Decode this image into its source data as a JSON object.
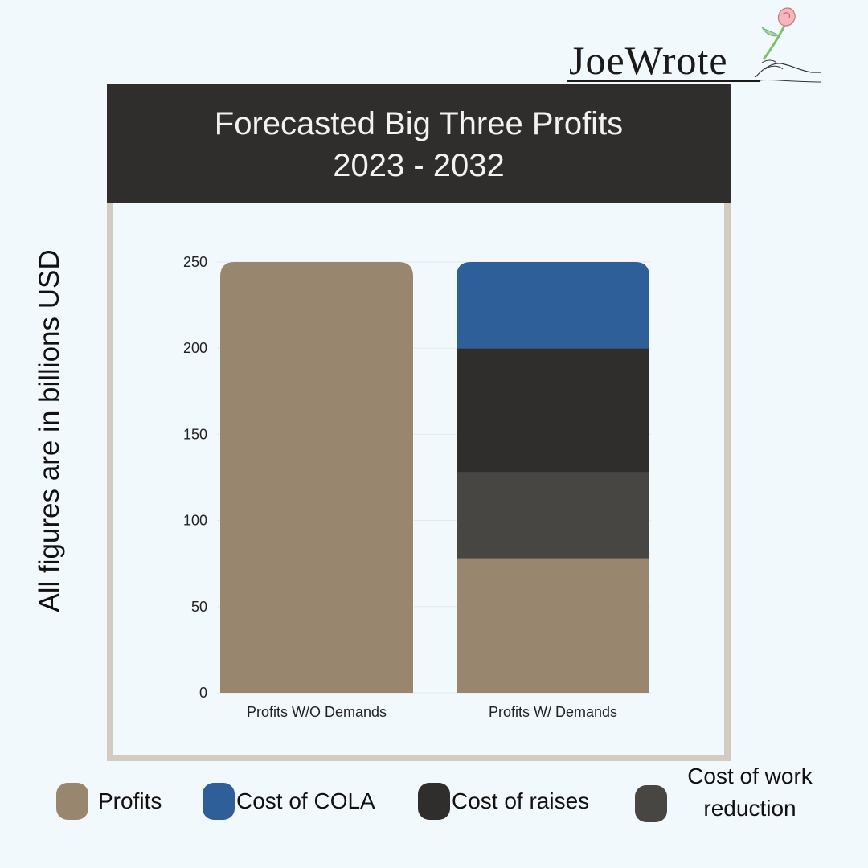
{
  "logo": {
    "text": "JoeWrote"
  },
  "title": {
    "line1": "Forecasted Big Three Profits",
    "line2": "2023 - 2032"
  },
  "y_note": "All figures are in billions USD",
  "colors": {
    "profits": "#99866f",
    "cola": "#2e5f98",
    "raises": "#2f2e2c",
    "work_reduction": "#474643",
    "title_band": "#2f2e2c",
    "frame": "#d4cbc0",
    "background": "#f2f9fc"
  },
  "legend": [
    {
      "label": "Profits",
      "color": "#99866f"
    },
    {
      "label": "Cost of COLA",
      "color": "#2e5f98"
    },
    {
      "label": "Cost of raises",
      "color": "#2f2e2c"
    },
    {
      "label": "Cost of work reduction",
      "line1": "Cost of work",
      "line2": "reduction",
      "color": "#474643"
    }
  ],
  "chart_data": {
    "type": "bar",
    "stacked": true,
    "categories": [
      "Profits W/O Demands",
      "Profits W/ Demands"
    ],
    "series": [
      {
        "name": "Profits",
        "color": "#99866f",
        "values": [
          250,
          78
        ]
      },
      {
        "name": "Cost of work reduction",
        "color": "#474643",
        "values": [
          0,
          50
        ]
      },
      {
        "name": "Cost of raises",
        "color": "#2f2e2c",
        "values": [
          0,
          72
        ]
      },
      {
        "name": "Cost of COLA",
        "color": "#2e5f98",
        "values": [
          0,
          50
        ]
      }
    ],
    "ylim": [
      0,
      250
    ],
    "yticks": [
      0,
      50,
      100,
      150,
      200,
      250
    ],
    "ylabel": "All figures are in billions USD",
    "grid": true,
    "legend_position": "bottom"
  }
}
